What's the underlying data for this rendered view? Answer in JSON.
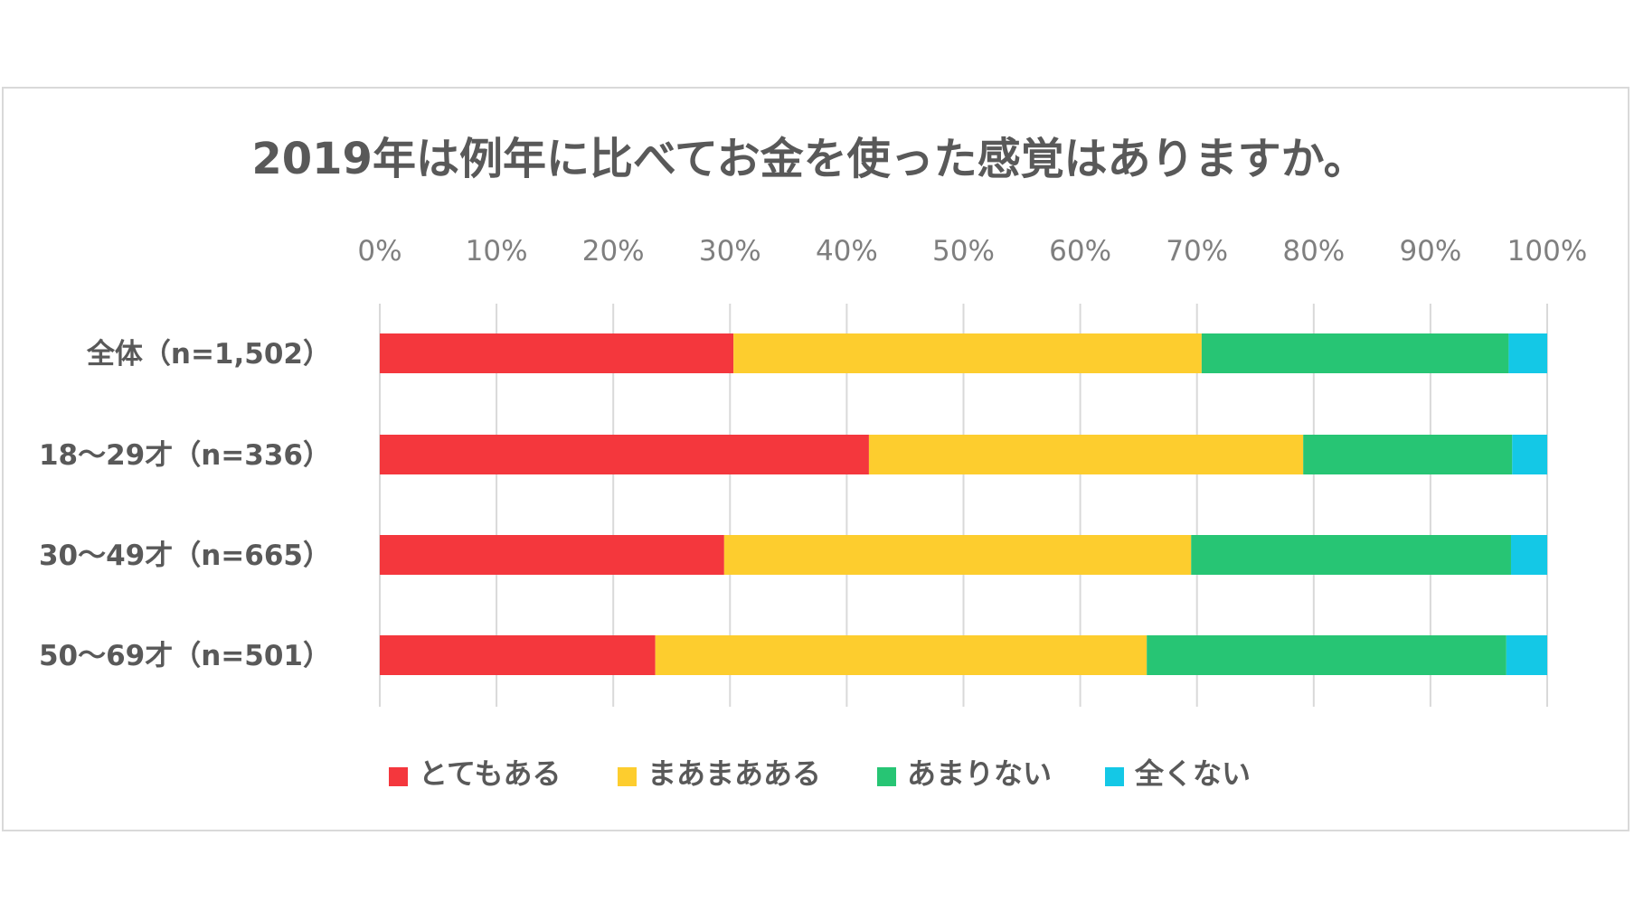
{
  "chart_data": {
    "type": "bar",
    "orientation": "horizontal",
    "stacked": true,
    "normalized": true,
    "title": "2019年は例年に比べてお金を使った感覚はありますか。",
    "xlabel": "",
    "ylabel": "",
    "xlim": [
      0,
      100
    ],
    "x_ticks": [
      "0%",
      "10%",
      "20%",
      "30%",
      "40%",
      "50%",
      "60%",
      "70%",
      "80%",
      "90%",
      "100%"
    ],
    "grid": true,
    "legend_position": "bottom",
    "categories": [
      "全体（n=1,502）",
      "18～29才（n=336）",
      "30～49才（n=665）",
      "50～69才（n=501）"
    ],
    "series": [
      {
        "name": "とてもある",
        "color": "#f4373d",
        "values": [
          30.3,
          41.9,
          29.5,
          23.6
        ]
      },
      {
        "name": "まあまあある",
        "color": "#fdcd2e",
        "values": [
          40.1,
          37.2,
          40.0,
          42.1
        ]
      },
      {
        "name": "あまりない",
        "color": "#27c574",
        "values": [
          26.3,
          17.9,
          27.4,
          30.8
        ]
      },
      {
        "name": "全くない",
        "color": "#14c8e6",
        "values": [
          3.3,
          3.0,
          3.1,
          3.5
        ]
      }
    ]
  }
}
